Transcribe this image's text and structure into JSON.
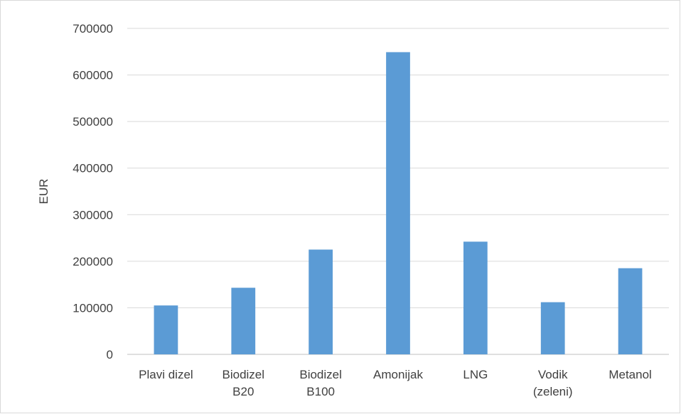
{
  "chart_data": {
    "type": "bar",
    "title": "",
    "xlabel": "",
    "ylabel": "EUR",
    "categories": [
      [
        "Plavi dizel"
      ],
      [
        "Biodizel",
        "B20"
      ],
      [
        "Biodizel",
        "B100"
      ],
      [
        "Amonijak"
      ],
      [
        "LNG"
      ],
      [
        "Vodik",
        "(zeleni)"
      ],
      [
        "Metanol"
      ]
    ],
    "values": [
      105000,
      143000,
      225000,
      649000,
      242000,
      112000,
      185000
    ],
    "ylim": [
      0,
      700000
    ],
    "yticks": [
      0,
      100000,
      200000,
      300000,
      400000,
      500000,
      600000,
      700000
    ],
    "ytick_labels": [
      "0",
      "100000",
      "200000",
      "300000",
      "400000",
      "500000",
      "600000",
      "700000"
    ],
    "grid": true,
    "legend": "none",
    "colors": {
      "bar": "#5b9bd5",
      "grid": "#d9d9d9",
      "axis": "#bfbfbf",
      "text": "#404040"
    }
  }
}
